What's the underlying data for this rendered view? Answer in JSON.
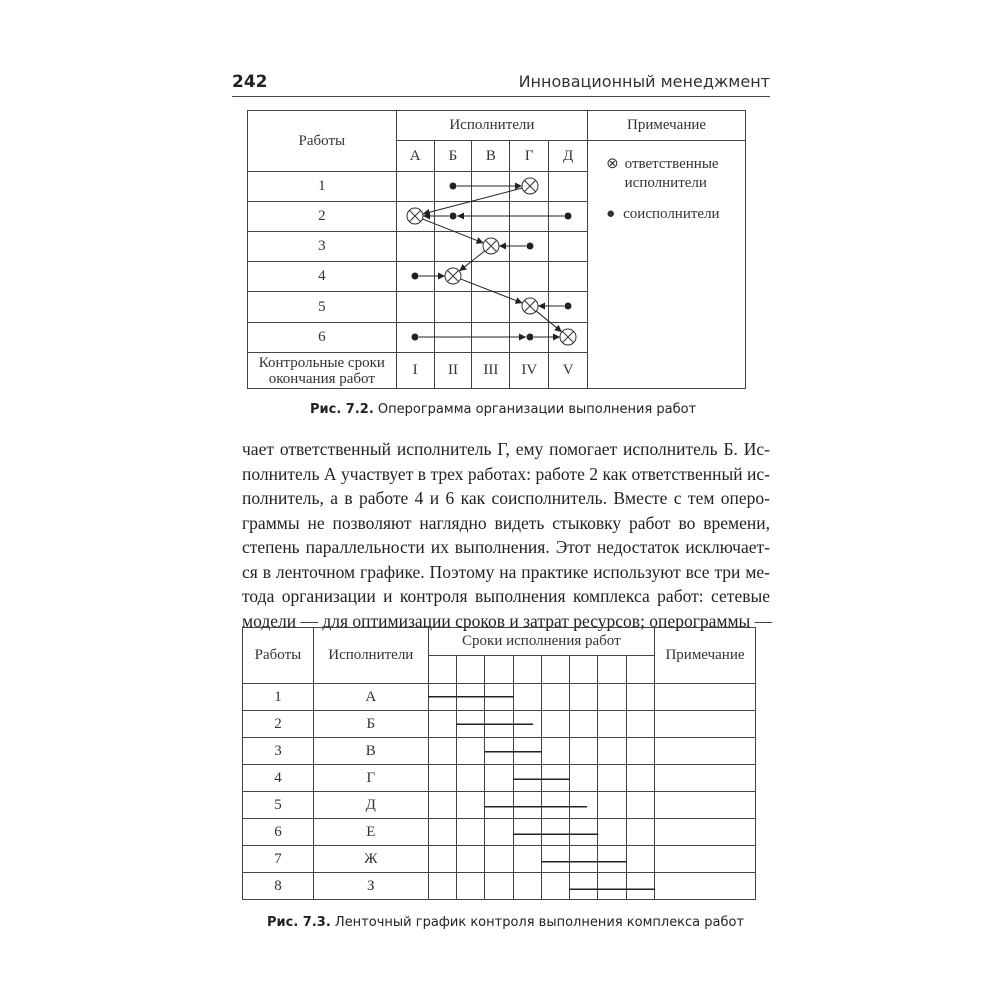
{
  "header": {
    "page_number": "242",
    "running_title": "Инновационный менеджмент"
  },
  "fig1": {
    "col_works": "Работы",
    "col_performers": "Исполнители",
    "col_note": "Примечание",
    "performers": [
      "А",
      "Б",
      "В",
      "Г",
      "Д"
    ],
    "rows": [
      {
        "n": "1",
        "responsible": "Г",
        "co": [
          "Б"
        ]
      },
      {
        "n": "2",
        "responsible": "А",
        "co": [
          "Б",
          "Д"
        ]
      },
      {
        "n": "3",
        "responsible": "В",
        "co": [
          "Г"
        ]
      },
      {
        "n": "4",
        "responsible": "Б",
        "co": [
          "А"
        ]
      },
      {
        "n": "5",
        "responsible": "Г",
        "co": [
          "Д"
        ]
      },
      {
        "n": "6",
        "responsible": "Д",
        "co": [
          "А",
          "Г"
        ]
      }
    ],
    "deadline_label": "Контрольные сроки окончания работ",
    "deadlines": [
      "I",
      "II",
      "III",
      "IV",
      "V"
    ],
    "legend": {
      "responsible": "ответственные исполнители",
      "co": "соисполнители"
    },
    "caption_num": "Рис. 7.2.",
    "caption_text": " Оперограмма организации выполнения работ"
  },
  "body_lines": [
    "чает ответственный исполнитель Г, ему помогает исполнитель Б. Ис-",
    "полнитель А участвует в трех работах: работе 2 как ответственный ис-",
    "полнитель, а в работе 4 и 6 как соисполнитель. Вместе с тем оперо-",
    "граммы не позволяют наглядно видеть стыковку работ во времени,",
    "степень параллельности их выполнения. Этот недостаток исключает-",
    "ся в ленточном графике. Поэтому на практике используют все три ме-",
    "тода организации и контроля выполнения комплекса работ: сетевые",
    "модели — для оптимизации сроков и затрат ресурсов; оперограммы —"
  ],
  "fig2": {
    "col_works": "Работы",
    "col_performers": "Исполнители",
    "col_terms": "Сроки исполнения работ",
    "col_note": "Примечание",
    "periods": 8,
    "rows": [
      {
        "n": "1",
        "performer": "А",
        "start": 0,
        "end": 3
      },
      {
        "n": "2",
        "performer": "Б",
        "start": 1,
        "end": 3.7
      },
      {
        "n": "3",
        "performer": "В",
        "start": 2,
        "end": 4
      },
      {
        "n": "4",
        "performer": "Г",
        "start": 3,
        "end": 5
      },
      {
        "n": "5",
        "performer": "Д",
        "start": 2,
        "end": 5.6
      },
      {
        "n": "6",
        "performer": "Е",
        "start": 3,
        "end": 6
      },
      {
        "n": "7",
        "performer": "Ж",
        "start": 4,
        "end": 7
      },
      {
        "n": "8",
        "performer": "З",
        "start": 5,
        "end": 8
      }
    ],
    "caption_num": "Рис. 7.3.",
    "caption_text": " Ленточный график контроля выполнения комплекса работ"
  }
}
